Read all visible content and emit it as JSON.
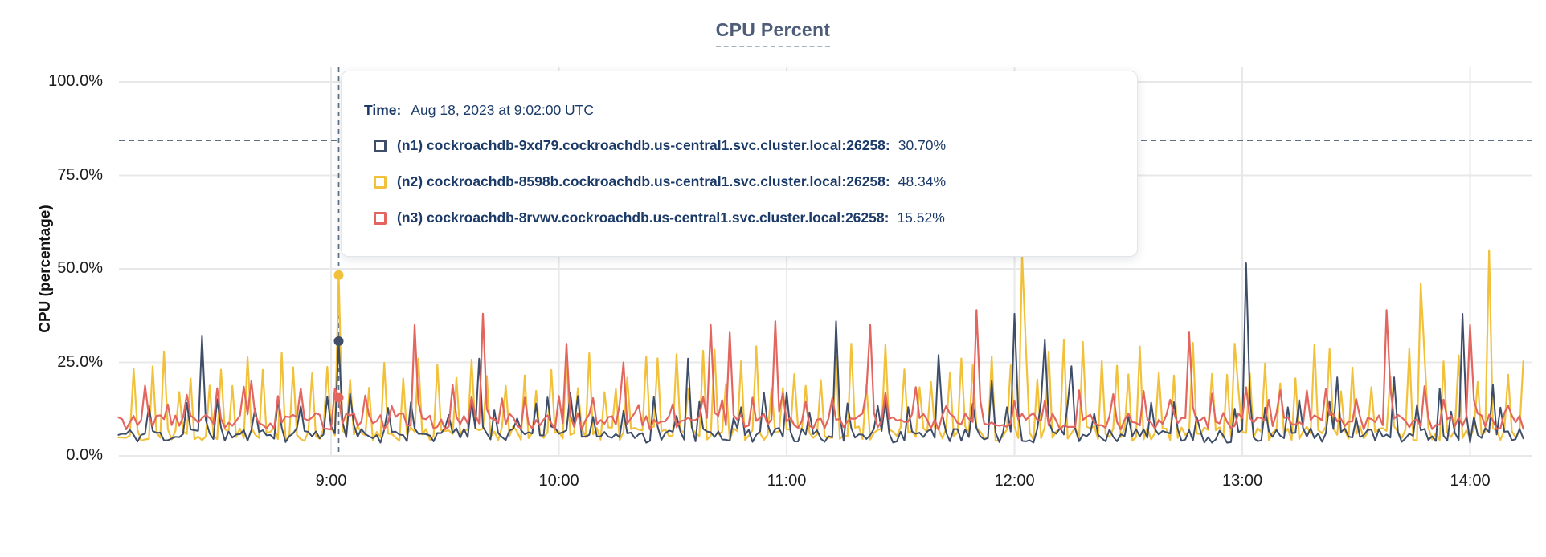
{
  "title": "CPU Percent",
  "tooltip": {
    "time_label": "Time:",
    "time_value": "Aug 18, 2023 at 9:02:00 UTC",
    "rows": [
      {
        "label": "(n1) cockroachdb-9xd79.cockroachdb.us-central1.svc.cluster.local:26258:",
        "value": "30.70%",
        "color": "#3e4d68"
      },
      {
        "label": "(n2) cockroachdb-8598b.cockroachdb.us-central1.svc.cluster.local:26258:",
        "value": "48.34%",
        "color": "#f2c13c"
      },
      {
        "label": "(n3) cockroachdb-8rvwv.cockroachdb.us-central1.svc.cluster.local:26258:",
        "value": "15.52%",
        "color": "#e2665f"
      }
    ]
  },
  "chart_data": {
    "type": "line",
    "title": "CPU Percent",
    "ylabel": "CPU (percentage)",
    "ylim": [
      0,
      100
    ],
    "grid": true,
    "legend_position": "tooltip-overlay",
    "y_ticks": [
      {
        "label": "100.0%",
        "value": 100
      },
      {
        "label": "75.0%",
        "value": 75
      },
      {
        "label": "50.0%",
        "value": 50
      },
      {
        "label": "25.0%",
        "value": 25
      },
      {
        "label": "0.0%",
        "value": 0
      }
    ],
    "x_ticks": [
      {
        "label": "9:00",
        "minute": 58
      },
      {
        "label": "10:00",
        "minute": 118
      },
      {
        "label": "11:00",
        "minute": 178
      },
      {
        "label": "12:00",
        "minute": 238
      },
      {
        "label": "13:00",
        "minute": 298
      },
      {
        "label": "14:00",
        "minute": 358
      }
    ],
    "threshold_percent": 84.3,
    "selected_point": {
      "time_text": "Aug 18, 2023 at 9:02:00 UTC",
      "minute": 60,
      "values": [
        30.7,
        48.34,
        15.52
      ]
    },
    "series": [
      {
        "name": "(n1) cockroachdb-9xd79.cockroachdb.us-central1.svc.cluster.local:26258",
        "color": "#3e4d68",
        "selected_value": 30.7,
        "baseline": [
          3.5,
          7.5
        ],
        "minor_spikes": {
          "gap": [
            6,
            10
          ],
          "height": [
            10,
            17
          ],
          "shoulder": 0.5
        },
        "peaks": [
          [
            24,
            32
          ],
          [
            60,
            30.7
          ],
          [
            97,
            26
          ],
          [
            112,
            14
          ],
          [
            123,
            16
          ],
          [
            152,
            26
          ],
          [
            166,
            13
          ],
          [
            178,
            17
          ],
          [
            191,
            36
          ],
          [
            204,
            15
          ],
          [
            218,
            27
          ],
          [
            232,
            20
          ],
          [
            238,
            38
          ],
          [
            246,
            31
          ],
          [
            253,
            24
          ],
          [
            299,
            51.5
          ],
          [
            310,
            13
          ],
          [
            323,
            21
          ],
          [
            338,
            21
          ],
          [
            350,
            18
          ],
          [
            356,
            38
          ],
          [
            364,
            19
          ]
        ]
      },
      {
        "name": "(n2) cockroachdb-8598b.cockroachdb.us-central1.svc.cluster.local:26258",
        "color": "#f2c13c",
        "selected_value": 48.34,
        "baseline": [
          4.0,
          8.0
        ],
        "minor_spikes": {
          "gap": [
            3,
            5
          ],
          "height": [
            17,
            31
          ],
          "shoulder": 0.15
        },
        "peaks": [
          [
            60,
            48.34
          ],
          [
            240,
            54
          ],
          [
            296,
            30
          ],
          [
            345,
            46
          ],
          [
            363,
            55
          ]
        ]
      },
      {
        "name": "(n3) cockroachdb-8rvwv.cockroachdb.us-central1.svc.cluster.local:26258",
        "color": "#e2665f",
        "selected_value": 15.52,
        "baseline": [
          7.0,
          11.5
        ],
        "minor_spikes": {
          "gap": [
            5,
            9
          ],
          "height": [
            13,
            19
          ],
          "shoulder": 0.55
        },
        "peaks": [
          [
            37,
            20
          ],
          [
            60,
            15.52
          ],
          [
            80,
            35
          ],
          [
            98,
            38
          ],
          [
            120,
            30
          ],
          [
            135,
            25
          ],
          [
            158,
            35
          ],
          [
            163,
            33
          ],
          [
            175,
            36
          ],
          [
            200,
            35
          ],
          [
            228,
            39
          ],
          [
            284,
            33
          ],
          [
            305,
            15
          ],
          [
            336,
            39
          ],
          [
            358,
            35
          ]
        ]
      }
    ]
  }
}
